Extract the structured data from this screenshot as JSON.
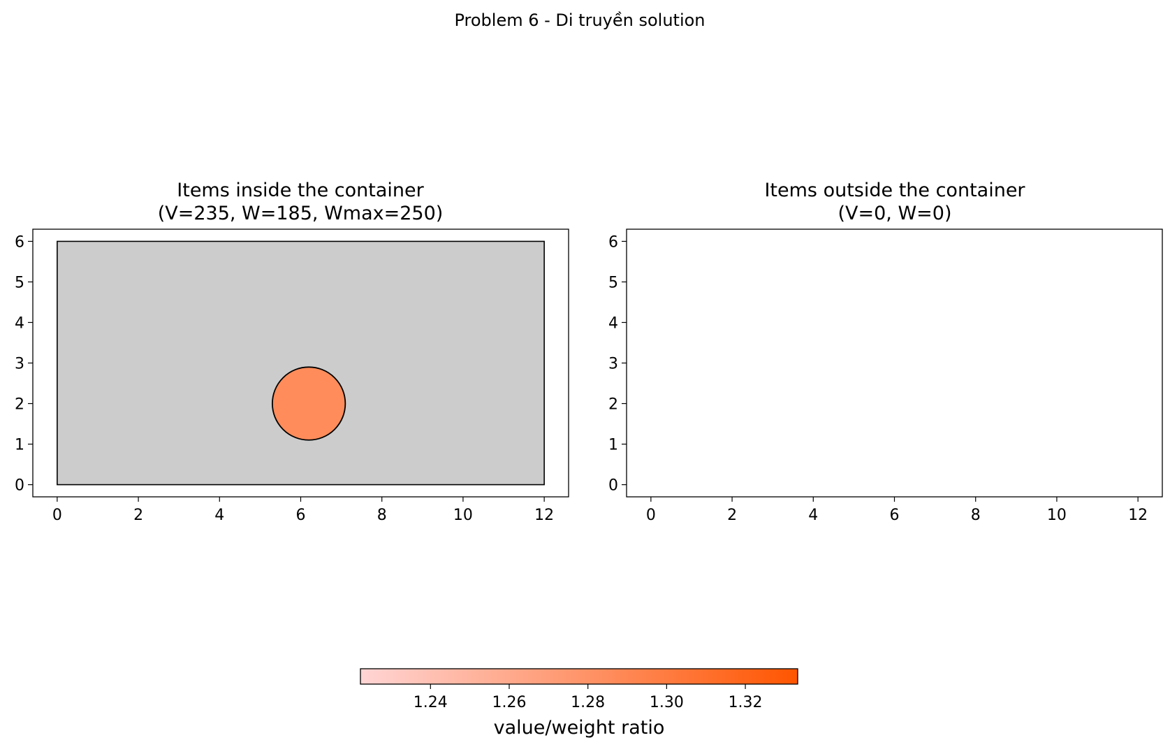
{
  "figure": {
    "title": "Problem 6 - Di truyền solution"
  },
  "chart_data": [
    {
      "type": "packing",
      "title_line1": "Items inside the container",
      "title_line2": "(V=235, W=185, Wmax=250)",
      "xlim": [
        -0.6,
        12.6
      ],
      "ylim": [
        -0.3,
        6.3
      ],
      "xticks": [
        0,
        2,
        4,
        6,
        8,
        10,
        12
      ],
      "yticks": [
        0,
        1,
        2,
        3,
        4,
        5,
        6
      ],
      "container": {
        "x0": 0,
        "y0": 0,
        "x1": 12,
        "y1": 6,
        "fill": "#cccccc"
      },
      "items": [
        {
          "shape": "circle",
          "cx": 6.2,
          "cy": 2.0,
          "r": 0.9,
          "ratio": 1.27,
          "fill": "#ff8c5a"
        }
      ]
    },
    {
      "type": "packing",
      "title_line1": "Items outside the container",
      "title_line2": "(V=0, W=0)",
      "xlim": [
        -0.6,
        12.6
      ],
      "ylim": [
        -0.3,
        6.3
      ],
      "xticks": [
        0,
        2,
        4,
        6,
        8,
        10,
        12
      ],
      "yticks": [
        0,
        1,
        2,
        3,
        4,
        5,
        6
      ],
      "items": []
    }
  ],
  "colorbar": {
    "label": "value/weight ratio",
    "range": [
      1.2222,
      1.3333
    ],
    "ticks": [
      1.24,
      1.26,
      1.28,
      1.3,
      1.32
    ],
    "tick_labels": [
      "1.24",
      "1.26",
      "1.28",
      "1.30",
      "1.32"
    ],
    "color_low": "#ffd5d5",
    "color_high": "#ff5500"
  }
}
